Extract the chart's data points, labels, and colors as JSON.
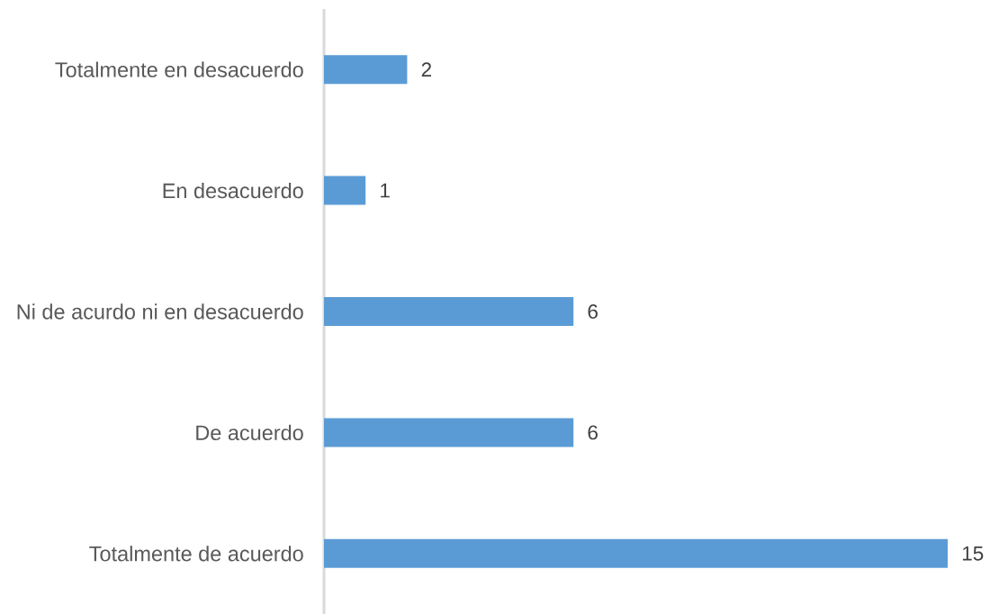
{
  "chart_data": {
    "type": "bar",
    "orientation": "horizontal",
    "categories": [
      "Totalmente en desacuerdo",
      "En desacuerdo",
      "Ni de acurdo ni en desacuerdo",
      "De acuerdo",
      "Totalmente de acuerdo"
    ],
    "values": [
      2,
      1,
      6,
      6,
      15
    ],
    "color": "#5b9bd5",
    "xlim": [
      0,
      15
    ],
    "data_labels": true,
    "tick_labels": "y"
  }
}
